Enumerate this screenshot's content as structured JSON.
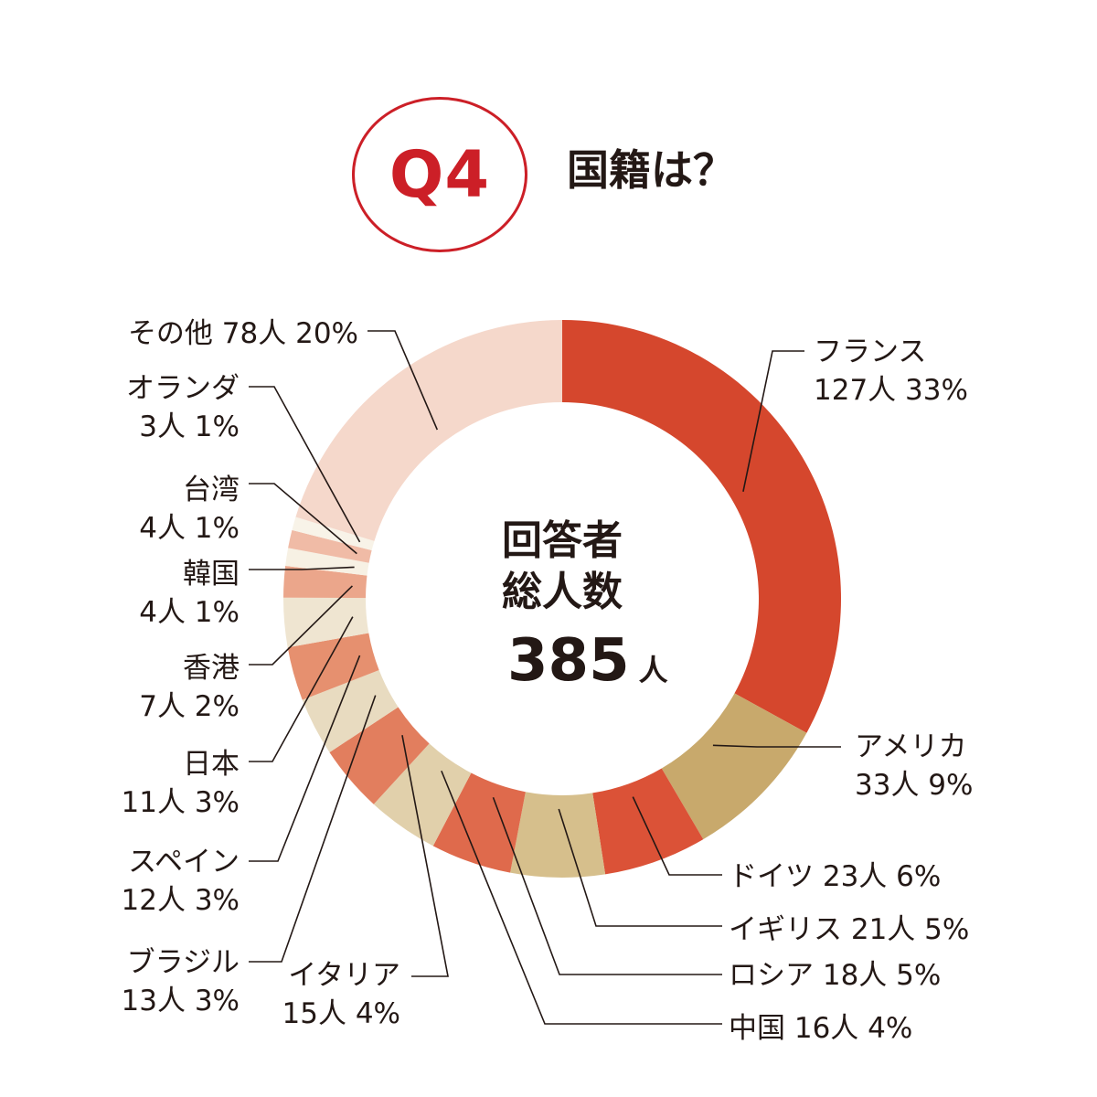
{
  "header": {
    "badge": "Q4",
    "title": "国籍は？",
    "badge_color": "#cc1f27"
  },
  "center": {
    "line1": "回答者",
    "line2": "総人数",
    "total": "385",
    "unit": "人"
  },
  "chart_data": {
    "type": "pie",
    "style": "donut",
    "total": 385,
    "unit": "人",
    "slices": [
      {
        "name": "フランス",
        "value": 127,
        "percent": 33,
        "color": "#d5472d"
      },
      {
        "name": "アメリカ",
        "value": 33,
        "percent": 9,
        "color": "#c8a96c"
      },
      {
        "name": "ドイツ",
        "value": 23,
        "percent": 6,
        "color": "#db5237"
      },
      {
        "name": "イギリス",
        "value": 21,
        "percent": 5,
        "color": "#d6bf8c"
      },
      {
        "name": "ロシア",
        "value": 18,
        "percent": 5,
        "color": "#df6a4c"
      },
      {
        "name": "中国",
        "value": 16,
        "percent": 4,
        "color": "#e1d0ab"
      },
      {
        "name": "イタリア",
        "value": 15,
        "percent": 4,
        "color": "#e27e5e"
      },
      {
        "name": "ブラジル",
        "value": 13,
        "percent": 3,
        "color": "#e8dbc0"
      },
      {
        "name": "スペイン",
        "value": 12,
        "percent": 3,
        "color": "#e6906f"
      },
      {
        "name": "日本",
        "value": 11,
        "percent": 3,
        "color": "#efe5d1"
      },
      {
        "name": "香港",
        "value": 7,
        "percent": 2,
        "color": "#eba68b"
      },
      {
        "name": "韓国",
        "value": 4,
        "percent": 1,
        "color": "#f7f1e4"
      },
      {
        "name": "台湾",
        "value": 4,
        "percent": 1,
        "color": "#f0bba6"
      },
      {
        "name": "オランダ",
        "value": 3,
        "percent": 1,
        "color": "#f8f3e8"
      },
      {
        "name": "その他",
        "value": 78,
        "percent": 20,
        "color": "#f5d8cb"
      }
    ]
  },
  "labels": [
    {
      "name": "フランス",
      "line1": "フランス",
      "line2": "127人 33%"
    },
    {
      "name": "アメリカ",
      "line1": "アメリカ",
      "line2": "33人 9%"
    },
    {
      "name": "ドイツ",
      "line1": "ドイツ 23人 6%"
    },
    {
      "name": "イギリス",
      "line1": "イギリス 21人 5%"
    },
    {
      "name": "ロシア",
      "line1": "ロシア 18人 5%"
    },
    {
      "name": "中国",
      "line1": "中国 16人 4%"
    },
    {
      "name": "イタリア",
      "line1": "イタリア",
      "line2": "15人 4%"
    },
    {
      "name": "ブラジル",
      "line1": "ブラジル",
      "line2": "13人 3%"
    },
    {
      "name": "スペイン",
      "line1": "スペイン",
      "line2": "12人 3%"
    },
    {
      "name": "日本",
      "line1": "日本",
      "line2": "11人 3%"
    },
    {
      "name": "香港",
      "line1": "香港",
      "line2": "7人 2%"
    },
    {
      "name": "韓国",
      "line1": "韓国",
      "line2": "4人 1%"
    },
    {
      "name": "台湾",
      "line1": "台湾",
      "line2": "4人 1%"
    },
    {
      "name": "オランダ",
      "line1": "オランダ",
      "line2": "3人 1%"
    },
    {
      "name": "その他",
      "line1": "その他 78人 20%"
    }
  ]
}
